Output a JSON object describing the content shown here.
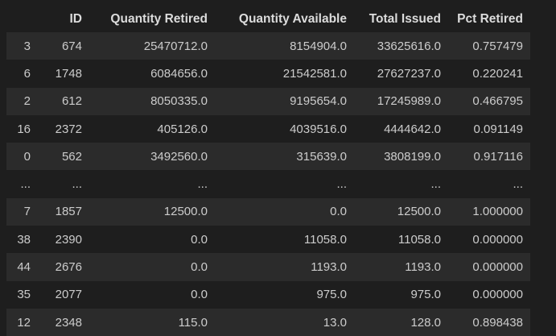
{
  "table": {
    "columns": [
      "",
      "ID",
      "Quantity Retired",
      "Quantity Available",
      "Total Issued",
      "Pct Retired"
    ],
    "rows": [
      [
        "3",
        "674",
        "25470712.0",
        "8154904.0",
        "33625616.0",
        "0.757479"
      ],
      [
        "6",
        "1748",
        "6084656.0",
        "21542581.0",
        "27627237.0",
        "0.220241"
      ],
      [
        "2",
        "612",
        "8050335.0",
        "9195654.0",
        "17245989.0",
        "0.466795"
      ],
      [
        "16",
        "2372",
        "405126.0",
        "4039516.0",
        "4444642.0",
        "0.091149"
      ],
      [
        "0",
        "562",
        "3492560.0",
        "315639.0",
        "3808199.0",
        "0.917116"
      ],
      [
        "...",
        "...",
        "...",
        "...",
        "...",
        "..."
      ],
      [
        "7",
        "1857",
        "12500.0",
        "0.0",
        "12500.0",
        "1.000000"
      ],
      [
        "38",
        "2390",
        "0.0",
        "11058.0",
        "11058.0",
        "0.000000"
      ],
      [
        "44",
        "2676",
        "0.0",
        "1193.0",
        "1193.0",
        "0.000000"
      ],
      [
        "35",
        "2077",
        "0.0",
        "975.0",
        "975.0",
        "0.000000"
      ],
      [
        "12",
        "2348",
        "115.0",
        "13.0",
        "128.0",
        "0.898438"
      ]
    ]
  }
}
